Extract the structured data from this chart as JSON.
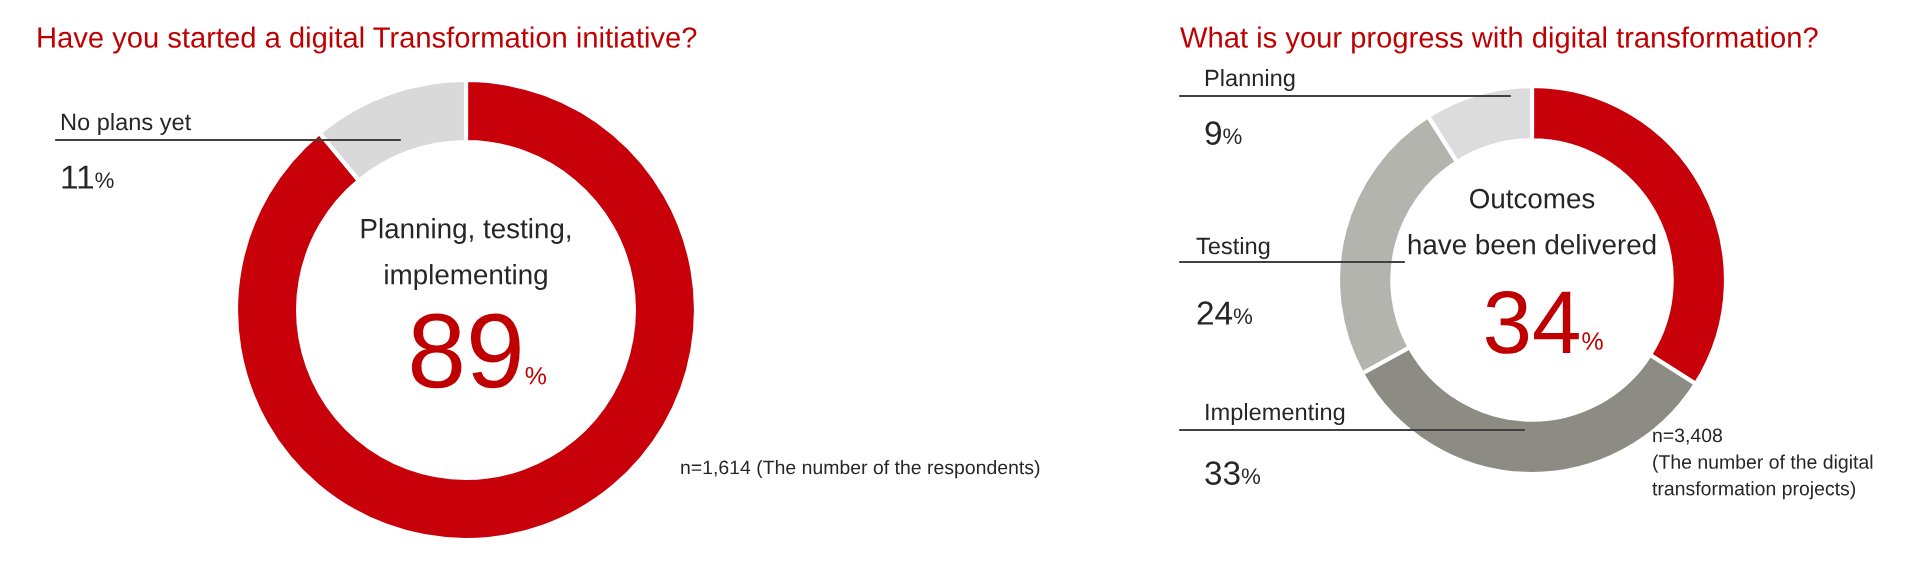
{
  "chart_data": [
    {
      "type": "donut",
      "title": "Have you started a digital Transformation initiative?",
      "categories": [
        "Planning, testing,\nimplementing",
        "No plans yet"
      ],
      "values": [
        89,
        11
      ],
      "colors": [
        "#c8000a",
        "#d9d9d9"
      ],
      "value_labels": [
        "89%",
        "11%"
      ],
      "annotations": [
        "n=1,614 (The number of the respondents)"
      ]
    },
    {
      "type": "donut",
      "title": "What is your progress with digital transformation?",
      "categories": [
        "Outcomes\nhave been delivered",
        "Implementing",
        "Testing",
        "Planning"
      ],
      "values": [
        34,
        33,
        24,
        9
      ],
      "colors": [
        "#c8000a",
        "#8c8c84",
        "#b4b4ae",
        "#dcdcdc"
      ],
      "value_labels": [
        "34%",
        "33%",
        "24%",
        "9%"
      ],
      "annotations": [
        "n=3,408\n(The number of the digital\ntransformation projects)"
      ]
    }
  ]
}
